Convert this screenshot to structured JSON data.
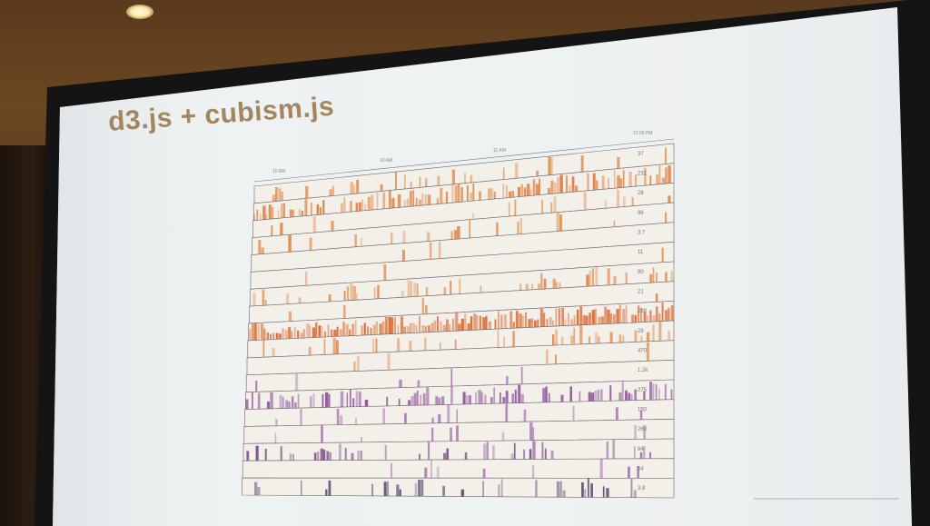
{
  "slide": {
    "title": "d3.js + cubism.js"
  },
  "axis": {
    "ticks": [
      "10 AM",
      "10 AM",
      "11 AM",
      "12:00 PM"
    ]
  },
  "tracks": [
    {
      "label": "37",
      "color": "#e08a4a",
      "intensity": 0.2
    },
    {
      "label": "231",
      "color": "#e07a3a",
      "intensity": 0.55
    },
    {
      "label": "28",
      "color": "#e08a4a",
      "intensity": 0.05
    },
    {
      "label": "86",
      "color": "#e08a4a",
      "intensity": 0.08
    },
    {
      "label": "3.7",
      "color": "#e08a4a",
      "intensity": 0.02
    },
    {
      "label": "11",
      "color": "#e08a4a",
      "intensity": 0.01
    },
    {
      "label": "80",
      "color": "#e08a4a",
      "intensity": 0.3
    },
    {
      "label": "21",
      "color": "#e08a4a",
      "intensity": 0.02
    },
    {
      "label": "238",
      "color": "#d9642a",
      "intensity": 0.8
    },
    {
      "label": "28",
      "color": "#e08a4a",
      "intensity": 0.15
    },
    {
      "label": "470",
      "color": "#e08a4a",
      "intensity": 0.01
    },
    {
      "label": "1.2k",
      "color": "#a36bb0",
      "intensity": 0.05
    },
    {
      "label": "275",
      "color": "#8a4f9a",
      "intensity": 0.45
    },
    {
      "label": "150",
      "color": "#a36bb0",
      "intensity": 0.06
    },
    {
      "label": "260",
      "color": "#a36bb0",
      "intensity": 0.05
    },
    {
      "label": "84",
      "color": "#7a4a8a",
      "intensity": 0.25
    },
    {
      "label": "54",
      "color": "#a36bb0",
      "intensity": 0.04
    },
    {
      "label": "3.8",
      "color": "#5a5070",
      "intensity": 0.2
    }
  ],
  "colors": {
    "screen": "#eef1f2",
    "title": "#a3865f"
  }
}
